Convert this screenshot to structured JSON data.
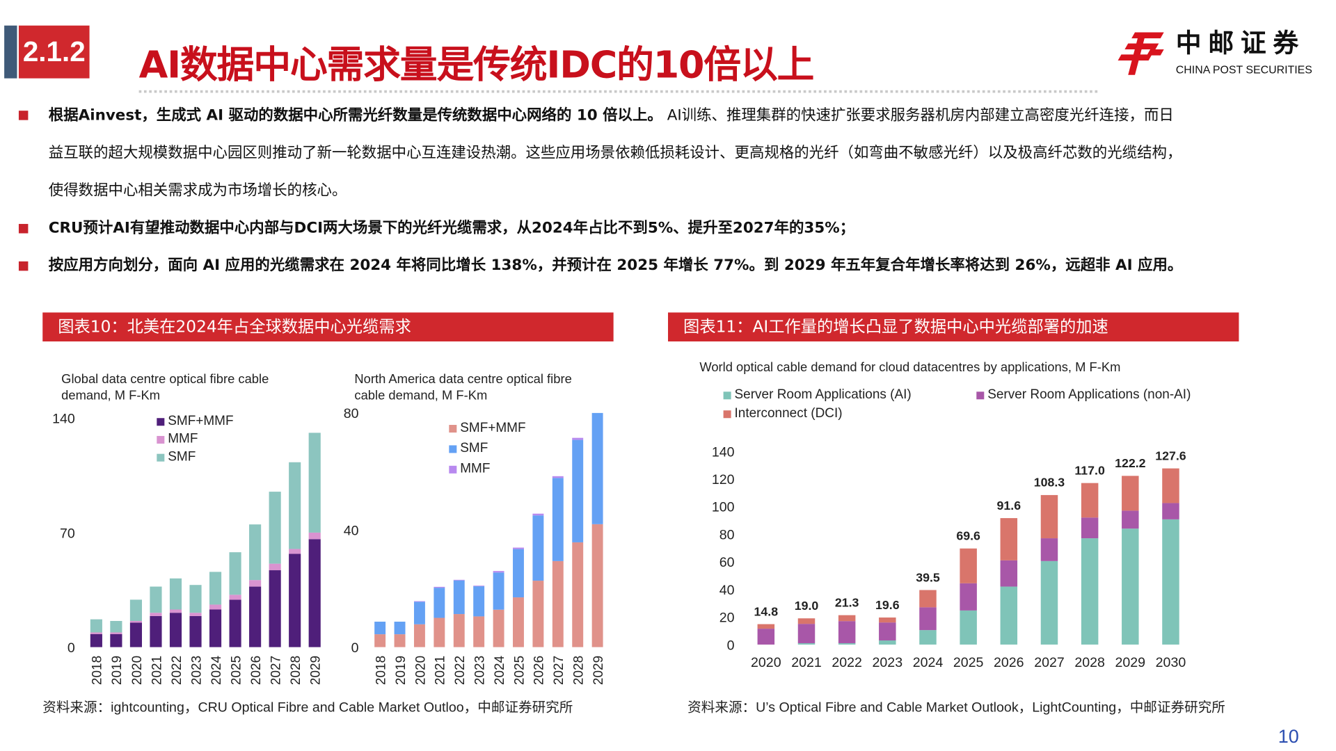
{
  "header": {
    "section": "2.1.2",
    "title": "AI数据中心需求量是传统IDC的10倍以上",
    "logo_cn": "中邮证券",
    "logo_en": "CHINA POST SECURITIES",
    "logo_mark": "china-post-logo"
  },
  "bullets": [
    {
      "bold": "根据Ainvest，生成式 AI 驱动的数据中心所需光纤数量是传统数据中心网络的 10 倍以上。",
      "line1": "AI训练、推理集群的快速扩张要求服务器机房内部建立高密度光纤连接，而日",
      "line2": "益互联的超大规模数据中心园区则推动了新一轮数据中心互连建设热潮。这些应用场景依赖低损耗设计、更高规格的光纤（如弯曲不敏感光纤）以及极高纤芯数的光缆结构，",
      "line3": "使得数据中心相关需求成为市场增长的核心。"
    },
    {
      "bold": "CRU预计AI有望推动数据中心内部与DCI两大场景下的光纤光缆需求，从2024年占比不到5%、提升至2027年的35%；"
    },
    {
      "bold": "按应用方向划分，面向 AI 应用的光缆需求在 2024 年将同比增长 138%，并预计在 2025 年增长 77%。到 2029 年五年复合年增长率将达到 26%，远超非 AI 应用。"
    }
  ],
  "figure10": {
    "banner": "图表10：北美在2024年占全球数据中心光缆需求",
    "source": "资料来源：ightcounting，CRU Optical Fibre and Cable Market Outloo，中邮证券研究所"
  },
  "figure11": {
    "banner": "图表11：AI工作量的增长凸显了数据中心中光缆部署的加速",
    "source": "资料来源：U’s Optical Fibre and Cable Market Outlook，LightCounting，中邮证券研究所"
  },
  "page_number": "10",
  "chart_data": [
    {
      "type": "bar",
      "stacked": true,
      "title": "Global data centre optical fibre cable demand, M F-Km",
      "ylim": [
        0,
        140
      ],
      "yticks": [
        "0",
        "70",
        "140"
      ],
      "categories": [
        "2018",
        "2019",
        "2020",
        "2021",
        "2022",
        "2023",
        "2024",
        "2025",
        "2026",
        "2027",
        "2028",
        "2029"
      ],
      "series": [
        {
          "name": "SMF+MMF",
          "color": "#4f1f7a",
          "values": [
            8,
            8,
            15,
            19,
            21,
            19,
            23,
            29,
            37,
            47,
            57,
            66
          ]
        },
        {
          "name": "MMF",
          "color": "#d993d0",
          "values": [
            1,
            1,
            1,
            2,
            2,
            2,
            3,
            3,
            4,
            4,
            3,
            4
          ]
        },
        {
          "name": "SMF",
          "color": "#8cc5bf",
          "values": [
            8,
            7,
            13,
            16,
            19,
            17,
            20,
            26,
            34,
            44,
            53,
            61
          ]
        }
      ],
      "legend_order": [
        0,
        1,
        2
      ]
    },
    {
      "type": "bar",
      "stacked": true,
      "title": "North America data centre optical fibre cable demand, M F-Km",
      "ylim": [
        0,
        80
      ],
      "yticks": [
        "0",
        "40",
        "80"
      ],
      "categories": [
        "2018",
        "2019",
        "2020",
        "2021",
        "2022",
        "2023",
        "2024",
        "2025",
        "2026",
        "2027",
        "2028",
        "2029"
      ],
      "series": [
        {
          "name": "SMF+MMF",
          "color": "#e0928a",
          "values": [
            4.4,
            4.4,
            7.8,
            10,
            11.3,
            10.5,
            12.8,
            17,
            22.7,
            29.4,
            35.8,
            42
          ]
        },
        {
          "name": "SMF",
          "color": "#64a1f4",
          "values": [
            4.3,
            4.3,
            7.7,
            10.3,
            11.5,
            10.3,
            12.7,
            16.5,
            22.3,
            28.4,
            35,
            38
          ]
        },
        {
          "name": "MMF",
          "color": "#b889ef",
          "values": [
            0,
            0,
            0.2,
            0.3,
            0.2,
            0.2,
            0.5,
            0.5,
            0.6,
            0.6,
            0.7,
            0
          ]
        }
      ],
      "legend_order": [
        0,
        1,
        2
      ]
    },
    {
      "type": "bar",
      "stacked": true,
      "title": "World optical cable demand for cloud datacentres by applications, M F-Km",
      "ylim": [
        0,
        140
      ],
      "yticks": [
        "0",
        "20",
        "40",
        "60",
        "80",
        "100",
        "120",
        "140"
      ],
      "categories": [
        "2020",
        "2021",
        "2022",
        "2023",
        "2024",
        "2025",
        "2026",
        "2027",
        "2028",
        "2029",
        "2030"
      ],
      "totals": [
        "14.8",
        "19.0",
        "21.3",
        "19.6",
        "39.5",
        "69.6",
        "91.6",
        "108.3",
        "117.0",
        "122.2",
        "127.6"
      ],
      "series": [
        {
          "name": "Server Room Applications (AI)",
          "color": "#7fc4b8",
          "values": [
            0,
            1,
            1,
            3,
            10.5,
            24.7,
            42,
            60.5,
            77,
            84,
            90.7
          ]
        },
        {
          "name": "Server Room Applications (non-AI)",
          "color": "#a857a8",
          "values": [
            11.5,
            14,
            16,
            13,
            16.5,
            19.7,
            19,
            16.5,
            15,
            13,
            11.8
          ]
        },
        {
          "name": "Interconnect (DCI)",
          "color": "#d9756b",
          "values": [
            3.3,
            4,
            4.3,
            3.6,
            12.5,
            25.2,
            30.6,
            31.3,
            25,
            25.2,
            25.1
          ]
        }
      ],
      "legend_order": [
        0,
        1,
        2
      ]
    }
  ]
}
